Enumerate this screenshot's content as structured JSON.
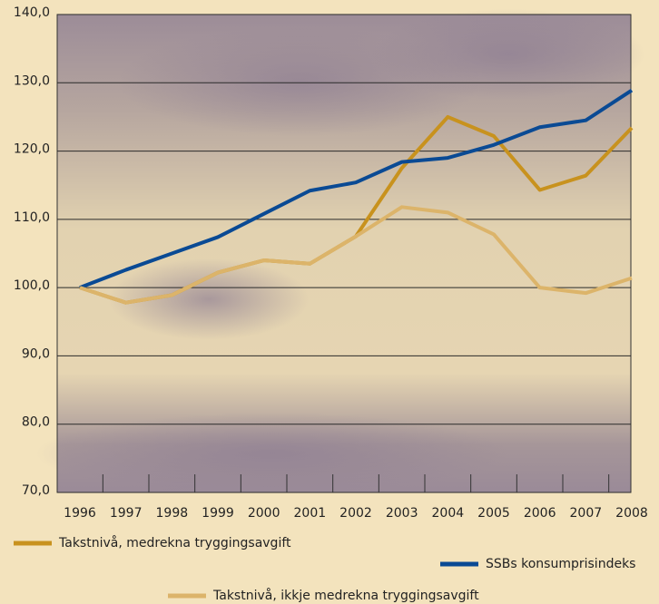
{
  "chart_data": {
    "type": "line",
    "categories": [
      "1996",
      "1997",
      "1998",
      "1999",
      "2000",
      "2001",
      "2002",
      "2003",
      "2004",
      "2005",
      "2006",
      "2007",
      "2008"
    ],
    "series": [
      {
        "name": "Takstnivå, medrekna tryggingsavgift",
        "color": "#c8921e",
        "values": [
          100,
          97.8,
          98.9,
          102.2,
          104,
          103.5,
          107.5,
          117.5,
          125,
          122.2,
          114.3,
          116.4,
          123.4
        ]
      },
      {
        "name": "SSBs konsumprisindeks",
        "color": "#0a4a94",
        "values": [
          100,
          102.6,
          105,
          107.4,
          110.8,
          114.2,
          115.4,
          118.4,
          119,
          120.9,
          123.5,
          124.5,
          128.9
        ]
      },
      {
        "name": "Takstnivå, ikkje medrekna tryggingsavgift",
        "color": "#dcb46a",
        "values": [
          100,
          97.8,
          98.9,
          102.2,
          104,
          103.5,
          107.5,
          111.8,
          111,
          107.8,
          100,
          99.2,
          101.4
        ]
      }
    ],
    "ylim": [
      70,
      140
    ],
    "yticks": [
      {
        "value": 70,
        "label": "70,0"
      },
      {
        "value": 80,
        "label": "80,0"
      },
      {
        "value": 90,
        "label": "90,0"
      },
      {
        "value": 100,
        "label": "100,0"
      },
      {
        "value": 110,
        "label": "110,0"
      },
      {
        "value": 120,
        "label": "120,0"
      },
      {
        "value": 130,
        "label": "130,0"
      },
      {
        "value": 140,
        "label": "140,0"
      }
    ],
    "grid": true
  }
}
